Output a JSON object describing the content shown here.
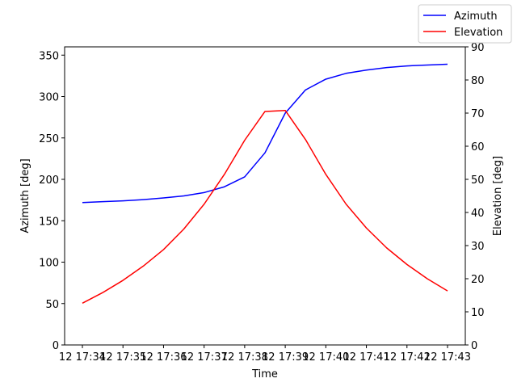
{
  "chart_data": {
    "type": "line",
    "title": "",
    "xlabel": "Time",
    "ylabel_left": "Azimuth [deg]",
    "ylabel_right": "Elevation [deg]",
    "x": [
      "17:34:00",
      "17:34:30",
      "17:35:00",
      "17:35:30",
      "17:36:00",
      "17:36:30",
      "17:37:00",
      "17:37:30",
      "17:38:00",
      "17:38:30",
      "17:39:00",
      "17:39:30",
      "17:40:00",
      "17:40:30",
      "17:41:00",
      "17:41:30",
      "17:42:00",
      "17:42:30",
      "17:43:00"
    ],
    "x_ticks": [
      "12 17:34",
      "12 17:35",
      "12 17:36",
      "12 17:37",
      "12 17:38",
      "12 17:39",
      "12 17:40",
      "12 17:41",
      "12 17:42",
      "12 17:43"
    ],
    "xlim": [
      "17:34:00",
      "17:43:00"
    ],
    "ylim_left": [
      0,
      360
    ],
    "yticks_left": [
      0,
      50,
      100,
      150,
      200,
      250,
      300,
      350
    ],
    "ylim_right": [
      0,
      90
    ],
    "yticks_right": [
      0,
      10,
      20,
      30,
      40,
      50,
      60,
      70,
      80,
      90
    ],
    "grid": false,
    "legend_position": "top-right (outside axes)",
    "series": [
      {
        "name": "Azimuth",
        "axis": "left",
        "color": "#0000ff",
        "values": [
          172,
          173,
          174,
          175.5,
          177.5,
          180,
          184,
          191,
          203,
          232,
          280,
          308,
          321,
          328,
          332,
          335,
          337,
          338,
          339
        ]
      },
      {
        "name": "Elevation",
        "axis": "right",
        "color": "#ff0000",
        "values": [
          12.6,
          15.8,
          19.5,
          23.8,
          28.8,
          35.0,
          42.5,
          51.5,
          61.8,
          70.5,
          70.8,
          62.0,
          51.5,
          42.5,
          35.3,
          29.3,
          24.3,
          20.0,
          16.3
        ]
      }
    ]
  }
}
